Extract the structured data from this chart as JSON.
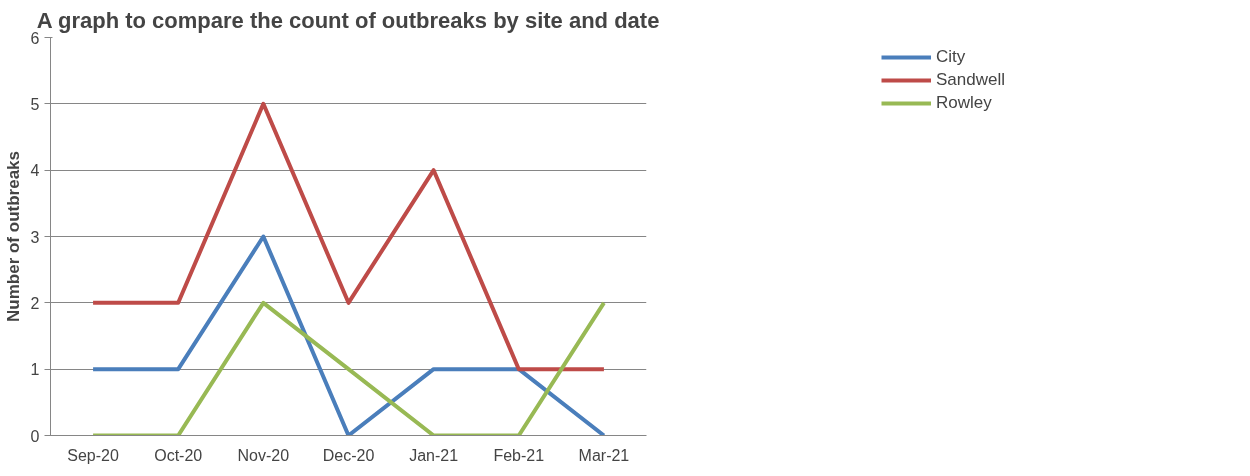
{
  "chart_data": {
    "type": "line",
    "title": "A graph to compare the count of outbreaks by site and date",
    "ylabel": "Number of outbreaks",
    "categories": [
      "Sep-20",
      "Oct-20",
      "Nov-20",
      "Dec-20",
      "Jan-21",
      "Feb-21",
      "Mar-21"
    ],
    "series": [
      {
        "name": "City",
        "color": "#4a7ebb",
        "values": [
          1,
          1,
          3,
          0,
          1,
          1,
          0
        ]
      },
      {
        "name": "Sandwell",
        "color": "#be4b48",
        "values": [
          2,
          2,
          5,
          2,
          4,
          1,
          1
        ]
      },
      {
        "name": "Rowley",
        "color": "#98b954",
        "values": [
          0,
          0,
          2,
          1,
          0,
          0,
          2
        ]
      }
    ],
    "ylim": [
      0,
      6
    ],
    "yticks": [
      0,
      1,
      2,
      3,
      4,
      5,
      6
    ],
    "grid": "y",
    "legend": "right",
    "marker": "none",
    "line_style": "solid"
  }
}
